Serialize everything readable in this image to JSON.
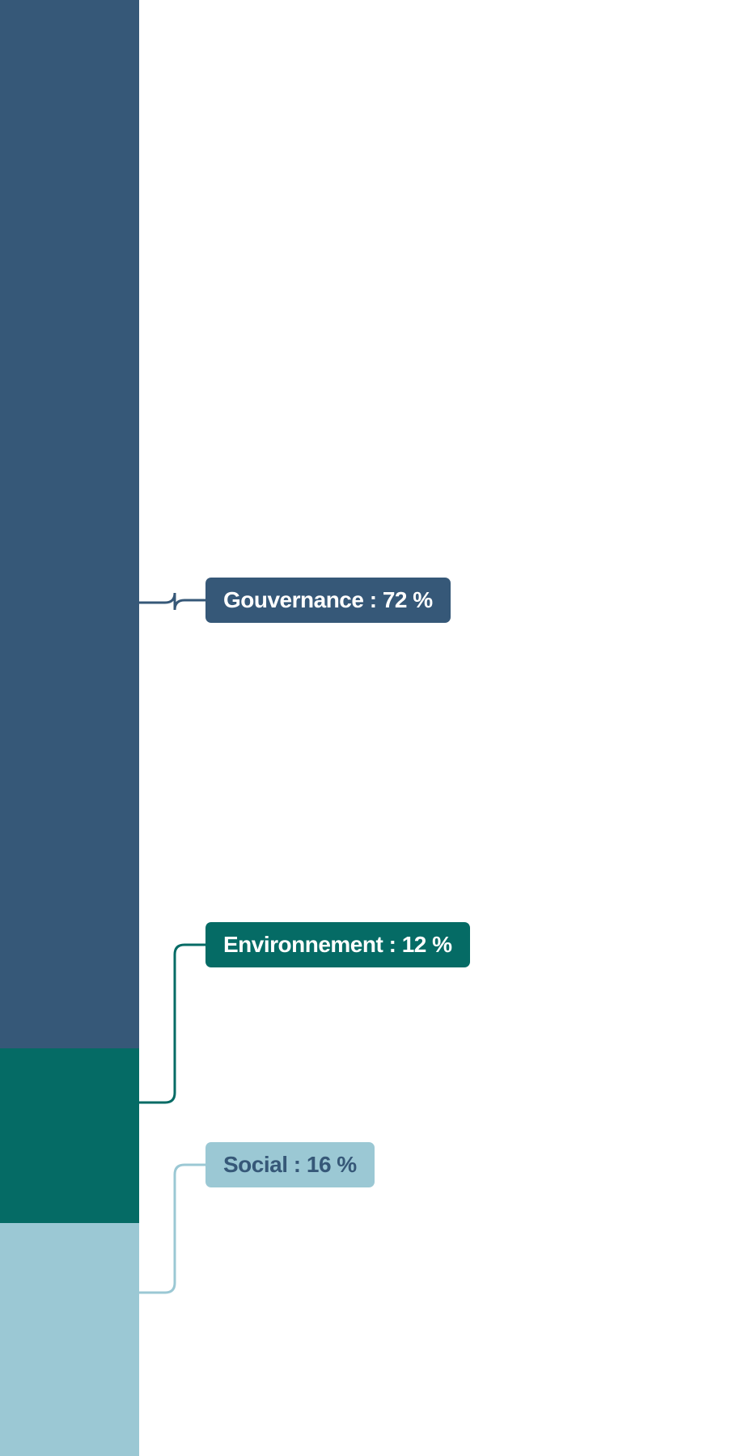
{
  "chart_data": {
    "type": "bar",
    "stacked": true,
    "orientation": "vertical",
    "unit": "%",
    "ylim": [
      0,
      100
    ],
    "grid": false,
    "segments": [
      {
        "name": "Gouvernance",
        "value": 72,
        "label": "Gouvernance : 72 %",
        "color": "#365878",
        "text_color": "#ffffff"
      },
      {
        "name": "Environnement",
        "value": 12,
        "label": "Environnement : 12 %",
        "color": "#056b65",
        "text_color": "#ffffff"
      },
      {
        "name": "Social",
        "value": 16,
        "label": "Social : 16 %",
        "color": "#9bc8d4",
        "text_color": "#365878"
      }
    ]
  }
}
